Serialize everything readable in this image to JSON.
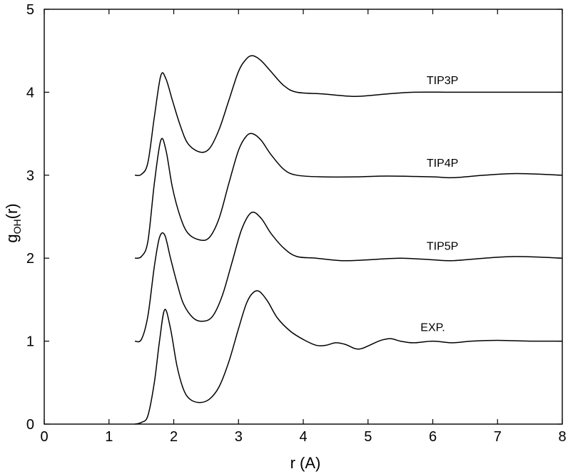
{
  "chart_data": {
    "type": "line",
    "title": "",
    "xlabel": "r (A)",
    "ylabel": "g(r)",
    "ylabel_main": "g",
    "ylabel_sub": "OH",
    "ylabel_tail": "(r)",
    "xlim": [
      0,
      8
    ],
    "ylim": [
      0,
      5
    ],
    "xticks": [
      0,
      1,
      2,
      3,
      4,
      5,
      6,
      7,
      8
    ],
    "yticks": [
      0,
      1,
      2,
      3,
      4,
      5
    ],
    "grid": false,
    "legend": "inline labels",
    "series": [
      {
        "name": "EXP.",
        "label_at": [
          6.0,
          1.12
        ],
        "points": [
          [
            1.4,
            0.0
          ],
          [
            1.5,
            0.02
          ],
          [
            1.6,
            0.1
          ],
          [
            1.7,
            0.5
          ],
          [
            1.78,
            1.0
          ],
          [
            1.86,
            1.38
          ],
          [
            1.95,
            1.15
          ],
          [
            2.05,
            0.7
          ],
          [
            2.15,
            0.42
          ],
          [
            2.25,
            0.3
          ],
          [
            2.4,
            0.26
          ],
          [
            2.55,
            0.3
          ],
          [
            2.7,
            0.45
          ],
          [
            2.85,
            0.75
          ],
          [
            3.0,
            1.15
          ],
          [
            3.12,
            1.45
          ],
          [
            3.22,
            1.58
          ],
          [
            3.32,
            1.6
          ],
          [
            3.45,
            1.48
          ],
          [
            3.6,
            1.28
          ],
          [
            3.8,
            1.12
          ],
          [
            4.0,
            1.02
          ],
          [
            4.2,
            0.95
          ],
          [
            4.35,
            0.95
          ],
          [
            4.5,
            0.98
          ],
          [
            4.65,
            0.96
          ],
          [
            4.8,
            0.91
          ],
          [
            4.9,
            0.91
          ],
          [
            5.05,
            0.96
          ],
          [
            5.2,
            1.01
          ],
          [
            5.35,
            1.03
          ],
          [
            5.5,
            1.0
          ],
          [
            5.7,
            0.98
          ],
          [
            6.0,
            1.0
          ],
          [
            6.3,
            0.98
          ],
          [
            6.6,
            1.0
          ],
          [
            7.0,
            1.01
          ],
          [
            7.5,
            1.0
          ],
          [
            8.0,
            1.0
          ]
        ]
      },
      {
        "name": "TIP5P",
        "label_at": [
          6.15,
          2.1
        ],
        "points": [
          [
            1.4,
            1.0
          ],
          [
            1.5,
            1.02
          ],
          [
            1.6,
            1.3
          ],
          [
            1.7,
            1.9
          ],
          [
            1.78,
            2.25
          ],
          [
            1.86,
            2.28
          ],
          [
            1.95,
            2.0
          ],
          [
            2.05,
            1.7
          ],
          [
            2.15,
            1.45
          ],
          [
            2.3,
            1.28
          ],
          [
            2.45,
            1.24
          ],
          [
            2.6,
            1.3
          ],
          [
            2.75,
            1.55
          ],
          [
            2.9,
            1.95
          ],
          [
            3.05,
            2.35
          ],
          [
            3.2,
            2.55
          ],
          [
            3.35,
            2.48
          ],
          [
            3.5,
            2.3
          ],
          [
            3.7,
            2.12
          ],
          [
            3.9,
            2.02
          ],
          [
            4.2,
            2.0
          ],
          [
            4.6,
            1.97
          ],
          [
            5.0,
            1.98
          ],
          [
            5.5,
            2.0
          ],
          [
            6.0,
            1.98
          ],
          [
            6.3,
            1.97
          ],
          [
            6.8,
            2.0
          ],
          [
            7.3,
            2.02
          ],
          [
            8.0,
            2.0
          ]
        ]
      },
      {
        "name": "TIP4P",
        "label_at": [
          6.15,
          3.1
        ],
        "points": [
          [
            1.4,
            2.0
          ],
          [
            1.5,
            2.02
          ],
          [
            1.6,
            2.2
          ],
          [
            1.7,
            2.9
          ],
          [
            1.8,
            3.42
          ],
          [
            1.88,
            3.3
          ],
          [
            1.98,
            2.85
          ],
          [
            2.1,
            2.5
          ],
          [
            2.22,
            2.3
          ],
          [
            2.4,
            2.22
          ],
          [
            2.55,
            2.25
          ],
          [
            2.7,
            2.48
          ],
          [
            2.85,
            2.9
          ],
          [
            3.0,
            3.3
          ],
          [
            3.12,
            3.47
          ],
          [
            3.22,
            3.5
          ],
          [
            3.35,
            3.42
          ],
          [
            3.5,
            3.25
          ],
          [
            3.7,
            3.07
          ],
          [
            3.9,
            3.0
          ],
          [
            4.3,
            2.98
          ],
          [
            4.8,
            2.98
          ],
          [
            5.3,
            2.99
          ],
          [
            6.0,
            2.98
          ],
          [
            6.3,
            2.97
          ],
          [
            6.8,
            3.0
          ],
          [
            7.3,
            3.02
          ],
          [
            8.0,
            3.0
          ]
        ]
      },
      {
        "name": "TIP3P",
        "label_at": [
          6.15,
          4.1
        ],
        "points": [
          [
            1.4,
            3.0
          ],
          [
            1.5,
            3.01
          ],
          [
            1.6,
            3.15
          ],
          [
            1.7,
            3.7
          ],
          [
            1.8,
            4.2
          ],
          [
            1.88,
            4.16
          ],
          [
            1.98,
            3.9
          ],
          [
            2.1,
            3.6
          ],
          [
            2.22,
            3.38
          ],
          [
            2.4,
            3.28
          ],
          [
            2.55,
            3.32
          ],
          [
            2.7,
            3.55
          ],
          [
            2.85,
            3.9
          ],
          [
            3.0,
            4.25
          ],
          [
            3.12,
            4.4
          ],
          [
            3.22,
            4.44
          ],
          [
            3.35,
            4.38
          ],
          [
            3.5,
            4.25
          ],
          [
            3.7,
            4.08
          ],
          [
            3.9,
            4.0
          ],
          [
            4.3,
            3.98
          ],
          [
            4.8,
            3.95
          ],
          [
            5.3,
            3.98
          ],
          [
            5.7,
            4.0
          ],
          [
            6.3,
            4.0
          ],
          [
            7.0,
            4.0
          ],
          [
            7.5,
            4.0
          ],
          [
            8.0,
            4.0
          ]
        ]
      }
    ]
  }
}
